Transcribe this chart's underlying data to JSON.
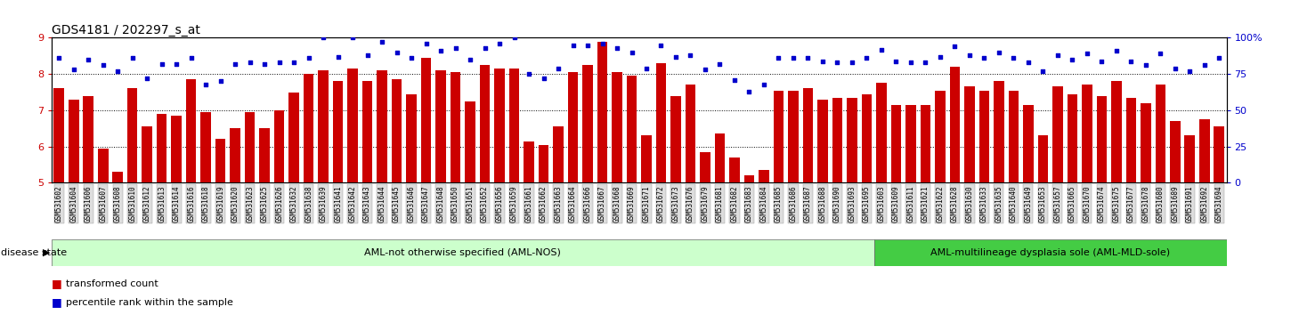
{
  "title": "GDS4181 / 202297_s_at",
  "samples": [
    "GSM531602",
    "GSM531604",
    "GSM531606",
    "GSM531607",
    "GSM531608",
    "GSM531610",
    "GSM531612",
    "GSM531613",
    "GSM531614",
    "GSM531616",
    "GSM531618",
    "GSM531619",
    "GSM531620",
    "GSM531623",
    "GSM531625",
    "GSM531626",
    "GSM531632",
    "GSM531638",
    "GSM531639",
    "GSM531641",
    "GSM531642",
    "GSM531643",
    "GSM531644",
    "GSM531645",
    "GSM531646",
    "GSM531647",
    "GSM531648",
    "GSM531650",
    "GSM531651",
    "GSM531652",
    "GSM531656",
    "GSM531659",
    "GSM531661",
    "GSM531662",
    "GSM531663",
    "GSM531664",
    "GSM531666",
    "GSM531667",
    "GSM531668",
    "GSM531669",
    "GSM531671",
    "GSM531672",
    "GSM531673",
    "GSM531676",
    "GSM531679",
    "GSM531681",
    "GSM531682",
    "GSM531683",
    "GSM531684",
    "GSM531685",
    "GSM531686",
    "GSM531687",
    "GSM531688",
    "GSM531690",
    "GSM531693",
    "GSM531695",
    "GSM531603",
    "GSM531609",
    "GSM531611",
    "GSM531621",
    "GSM531622",
    "GSM531628",
    "GSM531630",
    "GSM531633",
    "GSM531635",
    "GSM531640",
    "GSM531649",
    "GSM531653",
    "GSM531657",
    "GSM531665",
    "GSM531670",
    "GSM531674",
    "GSM531675",
    "GSM531677",
    "GSM531678",
    "GSM531680",
    "GSM531689",
    "GSM531691",
    "GSM531692",
    "GSM531694"
  ],
  "bar_values": [
    7.6,
    7.3,
    7.4,
    5.95,
    5.3,
    7.6,
    6.55,
    6.9,
    6.85,
    7.85,
    6.95,
    6.2,
    6.5,
    6.95,
    6.5,
    7.0,
    7.5,
    8.0,
    8.1,
    7.8,
    8.15,
    7.8,
    8.1,
    7.85,
    7.45,
    8.45,
    8.1,
    8.05,
    7.25,
    8.25,
    8.15,
    8.15,
    6.15,
    6.05,
    6.55,
    8.05,
    8.25,
    8.9,
    8.05,
    7.95,
    6.3,
    8.3,
    7.4,
    7.7,
    5.85,
    6.35,
    5.7,
    5.2,
    5.35,
    7.55,
    7.55,
    7.6,
    7.3,
    7.35,
    7.35,
    7.45,
    7.75,
    7.15,
    7.15,
    7.15,
    7.55,
    8.2,
    7.65,
    7.55,
    7.8,
    7.55,
    7.15,
    6.3,
    7.65,
    7.45,
    7.7,
    7.4,
    7.8,
    7.35,
    7.2,
    7.7,
    6.7,
    6.3,
    6.75,
    6.55
  ],
  "dot_values": [
    86,
    78,
    85,
    81,
    77,
    86,
    72,
    82,
    82,
    86,
    68,
    70,
    82,
    83,
    82,
    83,
    83,
    86,
    100,
    87,
    100,
    88,
    97,
    90,
    86,
    96,
    91,
    93,
    85,
    93,
    96,
    100,
    75,
    72,
    79,
    95,
    95,
    96,
    93,
    90,
    79,
    95,
    87,
    88,
    78,
    82,
    71,
    63,
    68,
    86,
    86,
    86,
    84,
    83,
    83,
    86,
    92,
    84,
    83,
    83,
    87,
    94,
    88,
    86,
    90,
    86,
    83,
    77,
    88,
    85,
    89,
    84,
    91,
    84,
    81,
    89,
    79,
    77,
    81,
    86
  ],
  "nos_count": 56,
  "mld_count": 24,
  "nos_label": "AML-not otherwise specified (AML-NOS)",
  "mld_label": "AML-multilineage dysplasia sole (AML-MLD-sole)",
  "disease_state_label": "disease state",
  "bar_color": "#cc0000",
  "dot_color": "#0000cc",
  "ylim_left": [
    5.0,
    9.0
  ],
  "ylim_right": [
    0,
    100
  ],
  "yticks_left": [
    5,
    6,
    7,
    8,
    9
  ],
  "yticks_right": [
    0,
    25,
    50,
    75,
    100
  ],
  "ytick_labels_right": [
    "0",
    "25",
    "50",
    "75",
    "100%"
  ],
  "legend_bar_label": "transformed count",
  "legend_dot_label": "percentile rank within the sample",
  "nos_color": "#ccffcc",
  "mld_color": "#44cc44",
  "title_fontsize": 10,
  "tick_fontsize": 5.5,
  "bar_baseline": 5.0
}
